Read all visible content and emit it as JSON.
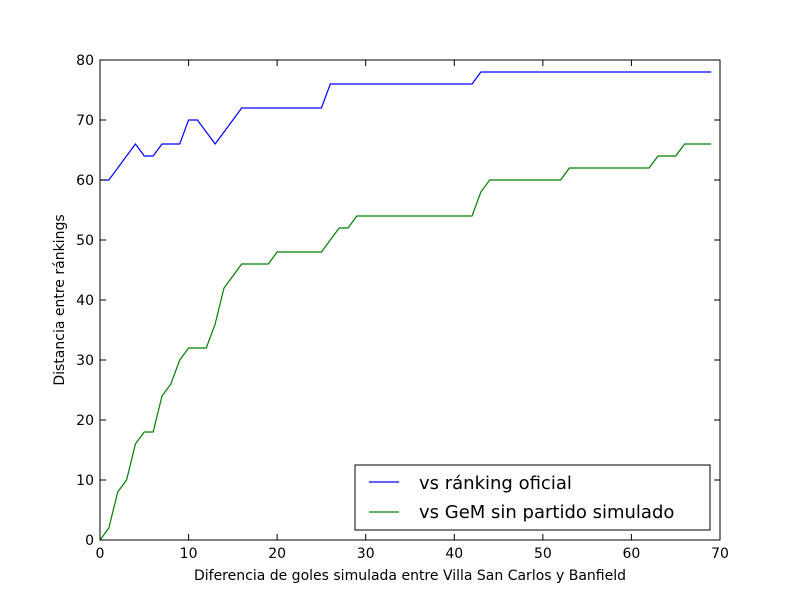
{
  "chart_data": {
    "type": "line",
    "title": "",
    "xlabel": "Diferencia de goles simulada entre Villa San Carlos y Banfield",
    "ylabel": "Distancia entre ránkings",
    "xlim": [
      0,
      70
    ],
    "ylim": [
      0,
      80
    ],
    "xticks": [
      0,
      10,
      20,
      30,
      40,
      50,
      60,
      70
    ],
    "yticks": [
      0,
      10,
      20,
      30,
      40,
      50,
      60,
      70,
      80
    ],
    "grid": false,
    "legend_position": "lower-right",
    "series": [
      {
        "name": "vs ránking oficial",
        "color": "#0000ff",
        "x": [
          0,
          1,
          2,
          3,
          4,
          5,
          6,
          7,
          8,
          9,
          10,
          11,
          12,
          13,
          14,
          15,
          16,
          17,
          18,
          19,
          20,
          21,
          22,
          23,
          24,
          25,
          26,
          27,
          28,
          29,
          30,
          31,
          32,
          33,
          34,
          35,
          36,
          37,
          38,
          39,
          40,
          41,
          42,
          43,
          44,
          45,
          46,
          47,
          48,
          49,
          50,
          51,
          52,
          53,
          54,
          55,
          56,
          57,
          58,
          59,
          60,
          61,
          62,
          63,
          64,
          65,
          66,
          67,
          68,
          69
        ],
        "y": [
          60,
          60,
          62,
          64,
          66,
          64,
          64,
          66,
          66,
          66,
          70,
          70,
          68,
          66,
          68,
          70,
          72,
          72,
          72,
          72,
          72,
          72,
          72,
          72,
          72,
          72,
          76,
          76,
          76,
          76,
          76,
          76,
          76,
          76,
          76,
          76,
          76,
          76,
          76,
          76,
          76,
          76,
          76,
          78,
          78,
          78,
          78,
          78,
          78,
          78,
          78,
          78,
          78,
          78,
          78,
          78,
          78,
          78,
          78,
          78,
          78,
          78,
          78,
          78,
          78,
          78,
          78,
          78,
          78,
          78
        ]
      },
      {
        "name": "vs GeM sin partido simulado",
        "color": "#008000",
        "x": [
          0,
          1,
          2,
          3,
          4,
          5,
          6,
          7,
          8,
          9,
          10,
          11,
          12,
          13,
          14,
          15,
          16,
          17,
          18,
          19,
          20,
          21,
          22,
          23,
          24,
          25,
          26,
          27,
          28,
          29,
          30,
          31,
          32,
          33,
          34,
          35,
          36,
          37,
          38,
          39,
          40,
          41,
          42,
          43,
          44,
          45,
          46,
          47,
          48,
          49,
          50,
          51,
          52,
          53,
          54,
          55,
          56,
          57,
          58,
          59,
          60,
          61,
          62,
          63,
          64,
          65,
          66,
          67,
          68,
          69
        ],
        "y": [
          0,
          2,
          8,
          10,
          16,
          18,
          18,
          24,
          26,
          30,
          32,
          32,
          32,
          36,
          42,
          44,
          46,
          46,
          46,
          46,
          48,
          48,
          48,
          48,
          48,
          48,
          50,
          52,
          52,
          54,
          54,
          54,
          54,
          54,
          54,
          54,
          54,
          54,
          54,
          54,
          54,
          54,
          54,
          58,
          60,
          60,
          60,
          60,
          60,
          60,
          60,
          60,
          60,
          62,
          62,
          62,
          62,
          62,
          62,
          62,
          62,
          62,
          62,
          64,
          64,
          64,
          66,
          66,
          66,
          66
        ]
      }
    ]
  }
}
